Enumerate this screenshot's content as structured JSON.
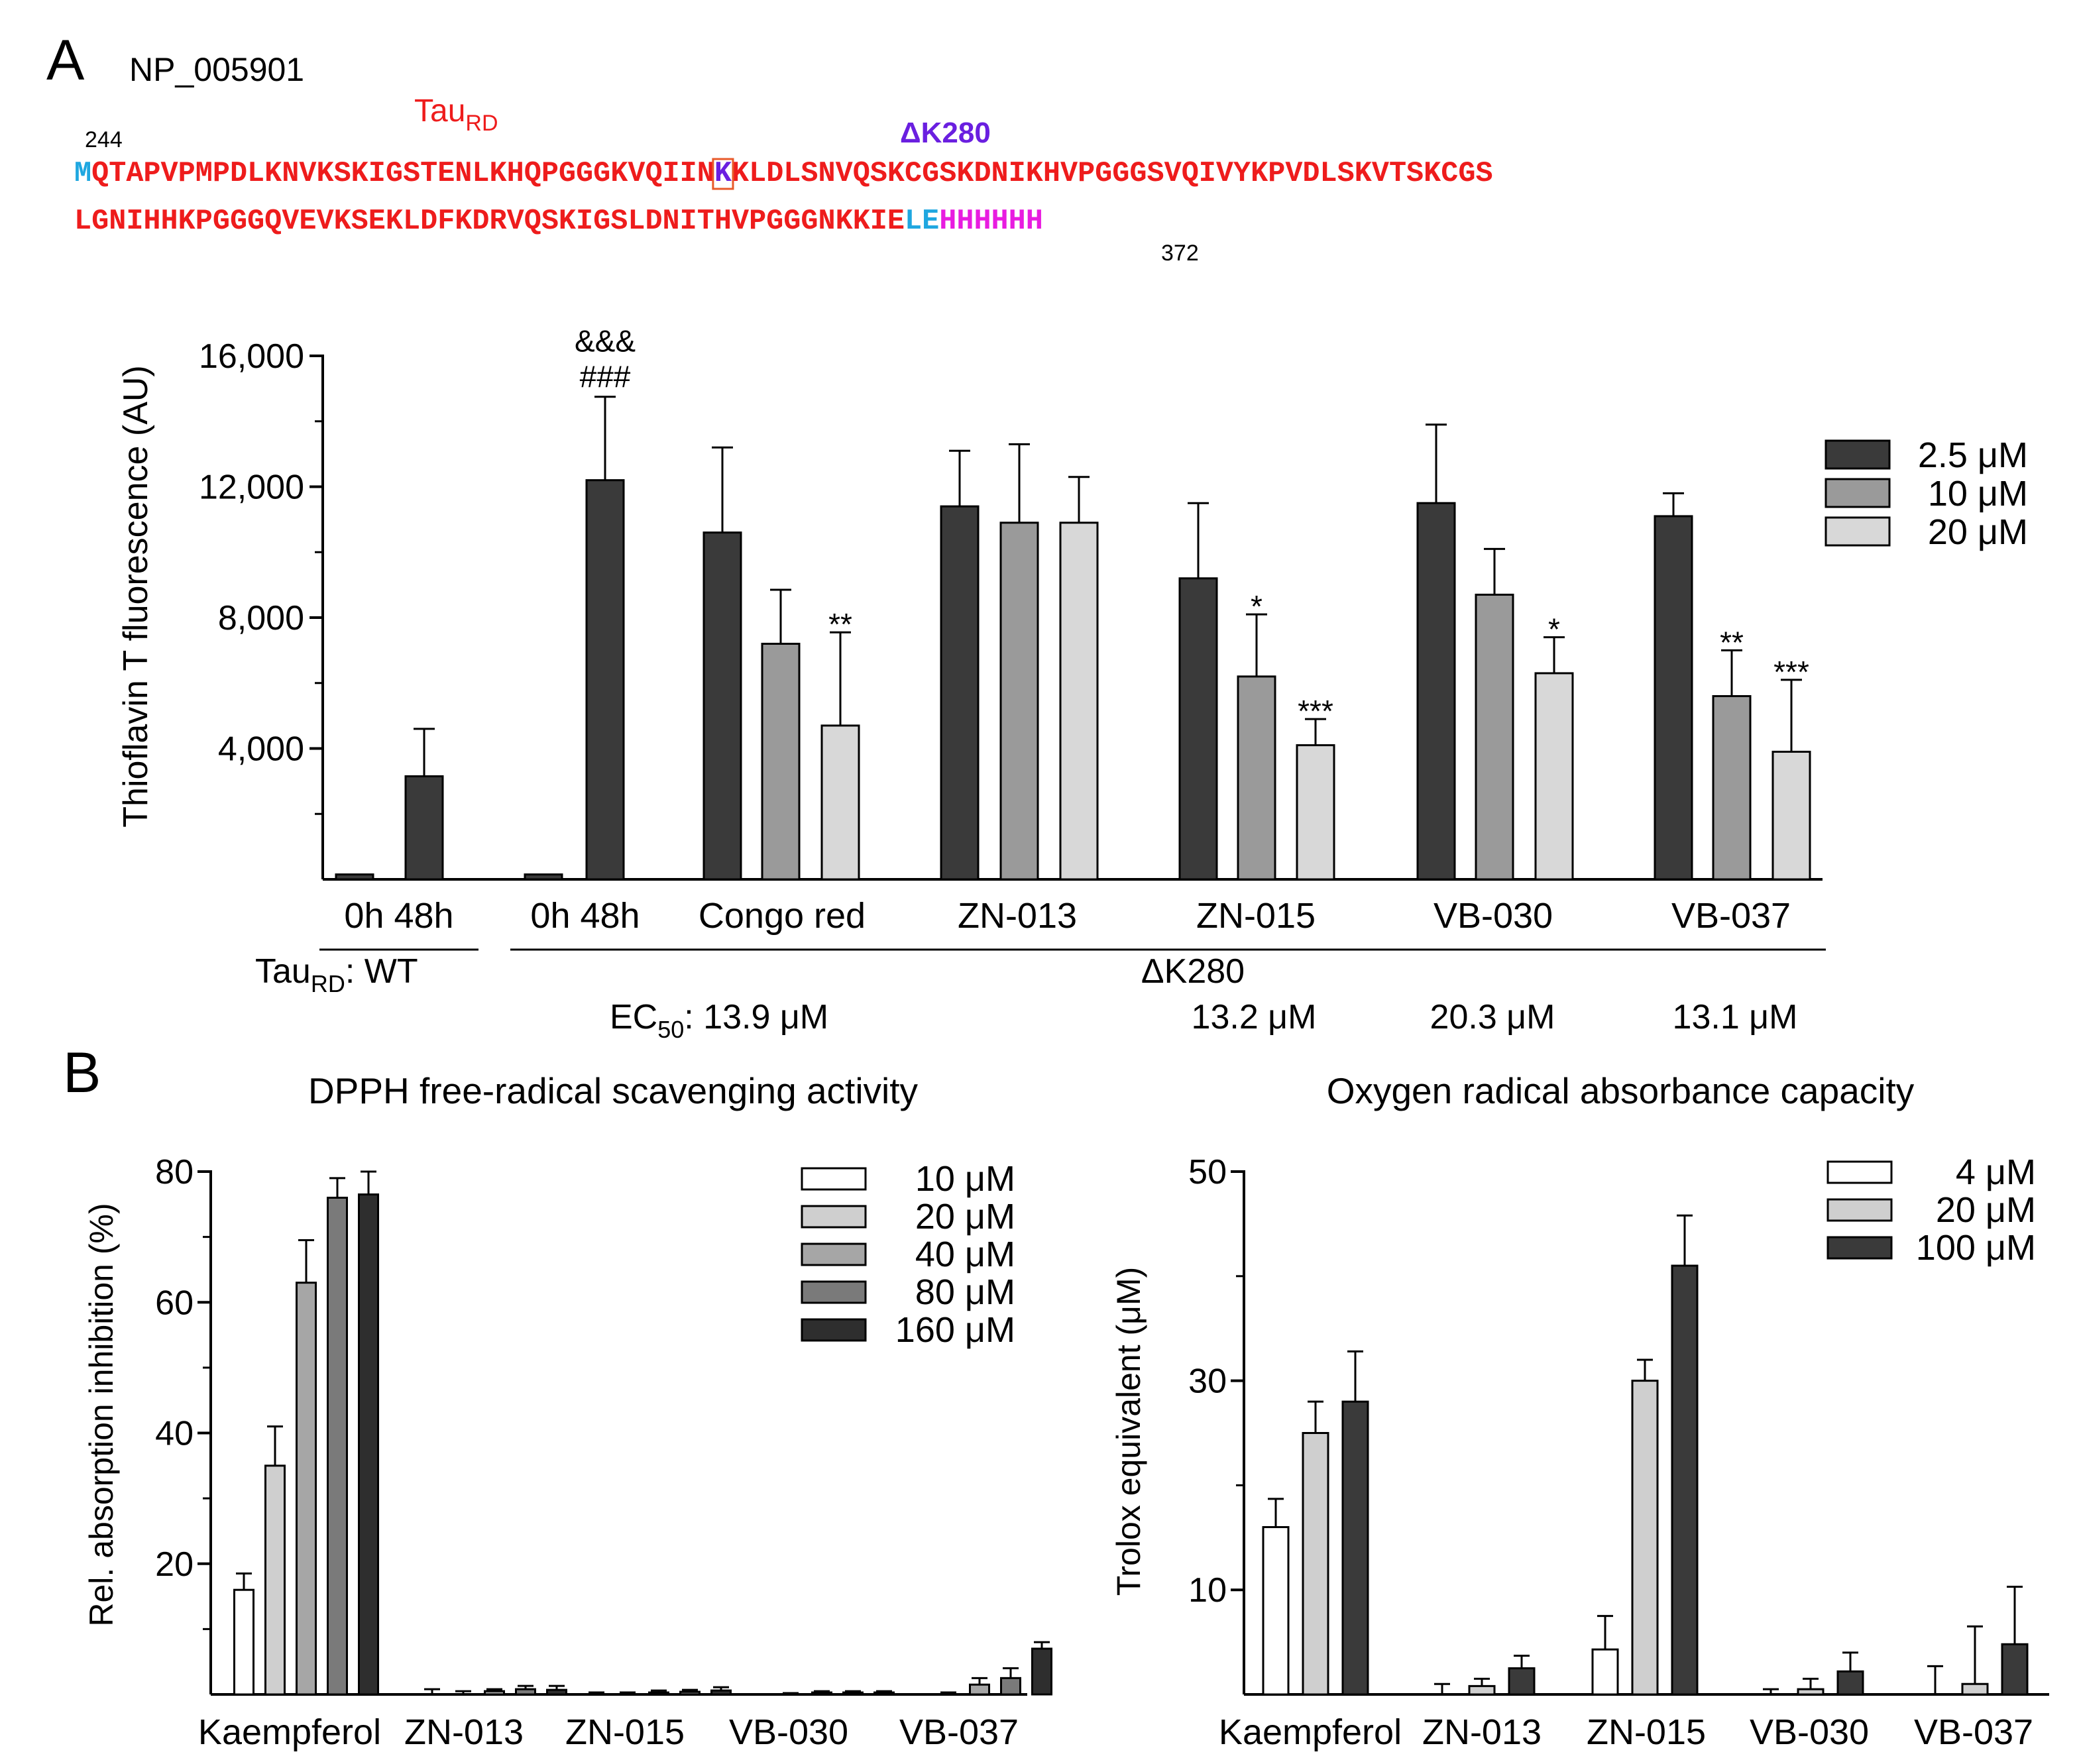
{
  "panel_a": {
    "label": "A",
    "accession": "NP_005901",
    "domain_label": "Tau",
    "domain_sub": "RD",
    "start_num": "244",
    "end_num": "372",
    "mutation_label": "ΔK280",
    "seq_line1": [
      {
        "t": "M",
        "c": "#1fa7e0"
      },
      {
        "t": "QTAPVPMPDLKNVKSKIGSTENLKHQPGGGKVQIIN",
        "c": "#ee1c1c"
      },
      {
        "t": "K",
        "c": "#6a1fe0"
      },
      {
        "t": "KLDLSNVQSKCGSKDNIKHVPGGGSVQIVYKPVDLSKVTSKCGS",
        "c": "#ee1c1c"
      }
    ],
    "seq_line2": [
      {
        "t": "LGNIHHKPGGGQVEVKSEKLDFKDRVQSKIGSLDNITHVPGGGNKKIE",
        "c": "#ee1c1c"
      },
      {
        "t": "LE",
        "c": "#1fa7e0"
      },
      {
        "t": "HHHHHH",
        "c": "#e81ce0"
      }
    ],
    "ec50_label": "EC",
    "ec50_sub": "50",
    "ec50_values": [
      {
        "group": "Congo red",
        "text": ": 13.9 μM"
      },
      {
        "group": "ZN-015",
        "text": "13.2 μM"
      },
      {
        "group": "VB-030",
        "text": "20.3 μM"
      },
      {
        "group": "VB-037",
        "text": "13.1 μM"
      }
    ],
    "wt_label": "Tau",
    "wt_sub": "RD",
    "wt_text": ": WT",
    "dk_label": "ΔK280"
  },
  "panel_b": {
    "label": "B"
  },
  "colors": {
    "c1": "#3a3a3a",
    "c2": "#9a9a9a",
    "c3": "#d8d8d8"
  },
  "chart_data": [
    {
      "type": "bar",
      "title": "",
      "ylabel": "Thioflavin T fluorescence (AU)",
      "xlabel": "",
      "ylim": [
        0,
        16000
      ],
      "yticks": [
        4000,
        8000,
        12000,
        16000
      ],
      "ytick_labels": [
        "4,000",
        "8,000",
        "12,000",
        "16,000"
      ],
      "legend": [
        "2.5 μM",
        "10 μM",
        "20 μM"
      ],
      "groups": [
        {
          "label": "0h  48h",
          "bars": [
            {
              "value": 150,
              "err": 0,
              "shade": 0
            },
            {
              "value": 3150,
              "err": 1450,
              "shade": 0
            }
          ]
        },
        {
          "label": "0h  48h",
          "bars": [
            {
              "value": 150,
              "err": 0,
              "shade": 0
            },
            {
              "value": 12200,
              "err": 2550,
              "shade": 0,
              "annot": [
                "&&&",
                "###"
              ]
            }
          ]
        },
        {
          "label": "Congo red",
          "bars": [
            {
              "value": 10600,
              "err": 2600,
              "shade": 1
            },
            {
              "value": 7200,
              "err": 1650,
              "shade": 2
            },
            {
              "value": 4700,
              "err": 2850,
              "shade": 3,
              "annot": [
                "**"
              ]
            }
          ]
        },
        {
          "label": "ZN-013",
          "bars": [
            {
              "value": 11400,
              "err": 1700,
              "shade": 1
            },
            {
              "value": 10900,
              "err": 2400,
              "shade": 2
            },
            {
              "value": 10900,
              "err": 1400,
              "shade": 3
            }
          ]
        },
        {
          "label": "ZN-015",
          "bars": [
            {
              "value": 9200,
              "err": 2300,
              "shade": 1
            },
            {
              "value": 6200,
              "err": 1900,
              "shade": 2,
              "annot": [
                "*"
              ]
            },
            {
              "value": 4100,
              "err": 800,
              "shade": 3,
              "annot": [
                "***"
              ]
            }
          ]
        },
        {
          "label": "VB-030",
          "bars": [
            {
              "value": 11500,
              "err": 2400,
              "shade": 1
            },
            {
              "value": 8700,
              "err": 1400,
              "shade": 2
            },
            {
              "value": 6300,
              "err": 1100,
              "shade": 3,
              "annot": [
                "*"
              ]
            }
          ]
        },
        {
          "label": "VB-037",
          "bars": [
            {
              "value": 11100,
              "err": 700,
              "shade": 1
            },
            {
              "value": 5600,
              "err": 1400,
              "shade": 2,
              "annot": [
                "**"
              ]
            },
            {
              "value": 3900,
              "err": 2200,
              "shade": 3,
              "annot": [
                "***"
              ]
            }
          ]
        }
      ]
    },
    {
      "type": "bar",
      "title": "DPPH free-radical scavenging activity",
      "ylabel": "Rel. absorption inhibition (%)",
      "xlabel": "",
      "ylim": [
        0,
        80
      ],
      "yticks": [
        20,
        40,
        60,
        80
      ],
      "ytick_labels": [
        "20",
        "40",
        "60",
        "80"
      ],
      "legend": [
        "10 μM",
        "20 μM",
        "40 μM",
        "80 μM",
        "160 μM"
      ],
      "colors": [
        "#ffffff",
        "#cfcfcf",
        "#a6a6a6",
        "#7a7a7a",
        "#2e2e2e"
      ],
      "categories": [
        "Kaempferol",
        "ZN-013",
        "ZN-015",
        "VB-030",
        "VB-037"
      ],
      "series": [
        {
          "name": "10 μM",
          "values": [
            16,
            0,
            0,
            0,
            0
          ],
          "errors": [
            2.5,
            0.8,
            0.3,
            0,
            0
          ]
        },
        {
          "name": "20 μM",
          "values": [
            35,
            0,
            0,
            0,
            0
          ],
          "errors": [
            6,
            0.5,
            0.3,
            0.2,
            0.3
          ]
        },
        {
          "name": "40 μM",
          "values": [
            63,
            0.5,
            0.3,
            0.3,
            1.5
          ],
          "errors": [
            6.5,
            0.3,
            0.3,
            0.2,
            1
          ]
        },
        {
          "name": "80 μM",
          "values": [
            76,
            0.8,
            0.4,
            0.3,
            2.5
          ],
          "errors": [
            3,
            0.5,
            0.3,
            0.2,
            1.5
          ]
        },
        {
          "name": "160 μM",
          "values": [
            76.5,
            0.7,
            0.6,
            0.3,
            7
          ],
          "errors": [
            3.5,
            0.6,
            0.5,
            0.2,
            1
          ]
        }
      ]
    },
    {
      "type": "bar",
      "title": "Oxygen radical absorbance capacity",
      "ylabel": "Trolox equivalent (μM)",
      "xlabel": "",
      "ylim": [
        0,
        50
      ],
      "yticks": [
        10,
        30,
        50
      ],
      "ytick_labels": [
        "10",
        "30",
        "50"
      ],
      "minor_ticks": [
        20,
        40
      ],
      "legend": [
        "4 μM",
        "20 μM",
        "100 μM"
      ],
      "colors": [
        "#ffffff",
        "#cfcfcf",
        "#3a3a3a"
      ],
      "categories": [
        "Kaempferol",
        "ZN-013",
        "ZN-015",
        "VB-030",
        "VB-037"
      ],
      "series": [
        {
          "name": "4 μM",
          "values": [
            16,
            0,
            4.3,
            0,
            0
          ],
          "errors": [
            2.7,
            1,
            3.2,
            0.5,
            2.7
          ]
        },
        {
          "name": "20 μM",
          "values": [
            25,
            0.8,
            30,
            0.5,
            1
          ],
          "errors": [
            3,
            0.7,
            2,
            1,
            5.5
          ]
        },
        {
          "name": "100 μM",
          "values": [
            28,
            2.5,
            41,
            2.2,
            4.8
          ],
          "errors": [
            4.8,
            1.2,
            4.8,
            1.8,
            5.5
          ]
        }
      ]
    }
  ]
}
